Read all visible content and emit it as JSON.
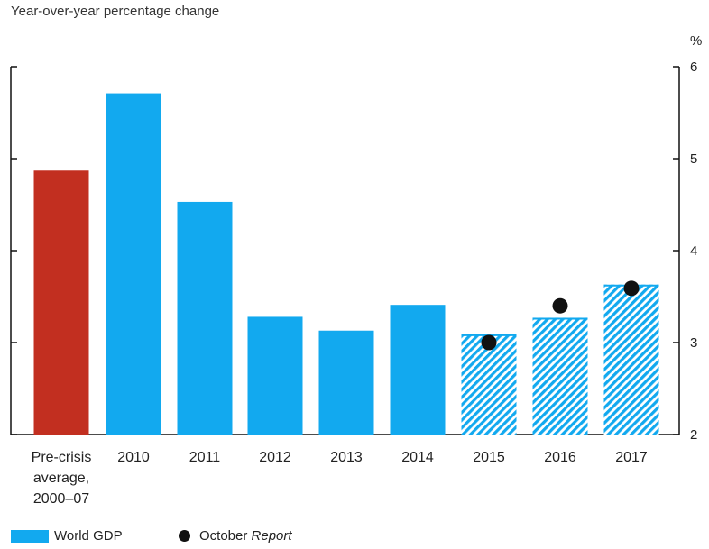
{
  "subtitle": "Year-over-year percentage change",
  "colors": {
    "world_gdp": "#12a9ef",
    "pre_crisis": "#c22f20",
    "forecast_hatch": "#12a9ef",
    "october_report_dot": "#111111"
  },
  "legend": {
    "world_gdp": "World GDP",
    "october_prefix": "October",
    "october_italic": "Report"
  },
  "chart_data": {
    "type": "bar",
    "categories": [
      [
        "Pre-crisis",
        "average,",
        "2000–07"
      ],
      [
        "2010"
      ],
      [
        "2011"
      ],
      [
        "2012"
      ],
      [
        "2013"
      ],
      [
        "2014"
      ],
      [
        "2015"
      ],
      [
        "2016"
      ],
      [
        "2017"
      ]
    ],
    "series": [
      {
        "name": "World GDP",
        "values": [
          4.87,
          5.71,
          4.53,
          3.28,
          3.13,
          3.41,
          3.09,
          3.27,
          3.63
        ],
        "styles": [
          "pre-crisis",
          "solid",
          "solid",
          "solid",
          "solid",
          "solid",
          "hatched",
          "hatched",
          "hatched"
        ]
      },
      {
        "name": "October Report",
        "type": "scatter",
        "points": [
          {
            "category_index": 6,
            "value": 3.0
          },
          {
            "category_index": 7,
            "value": 3.4
          },
          {
            "category_index": 8,
            "value": 3.59
          }
        ]
      }
    ],
    "y_unit": "%",
    "ylim": [
      2,
      6
    ],
    "yticks": [
      2,
      3,
      4,
      5,
      6
    ],
    "y_axis_side": "both",
    "y_tick_labels_side": "right",
    "grid": false,
    "legend_position": "bottom-left"
  }
}
